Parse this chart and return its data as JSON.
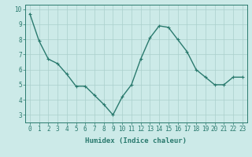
{
  "x": [
    0,
    1,
    2,
    3,
    4,
    5,
    6,
    7,
    8,
    9,
    10,
    11,
    12,
    13,
    14,
    15,
    16,
    17,
    18,
    19,
    20,
    21,
    22,
    23
  ],
  "y": [
    9.7,
    7.9,
    6.7,
    6.4,
    5.7,
    4.9,
    4.9,
    4.3,
    3.7,
    3.0,
    4.2,
    5.0,
    6.7,
    8.1,
    8.9,
    8.8,
    8.0,
    7.2,
    6.0,
    5.5,
    5.0,
    5.0,
    5.5,
    5.5
  ],
  "line_color": "#2a7a6e",
  "marker_color": "#2a7a6e",
  "bg_color": "#cceae8",
  "grid_color": "#aacfcc",
  "xlabel": "Humidex (Indice chaleur)",
  "xlim": [
    -0.5,
    23.5
  ],
  "ylim": [
    2.5,
    10.3
  ],
  "yticks": [
    3,
    4,
    5,
    6,
    7,
    8,
    9,
    10
  ],
  "xticks": [
    0,
    1,
    2,
    3,
    4,
    5,
    6,
    7,
    8,
    9,
    10,
    11,
    12,
    13,
    14,
    15,
    16,
    17,
    18,
    19,
    20,
    21,
    22,
    23
  ],
  "xlabel_fontsize": 6.5,
  "tick_fontsize": 5.5,
  "line_width": 1.0,
  "marker_size": 2.2
}
